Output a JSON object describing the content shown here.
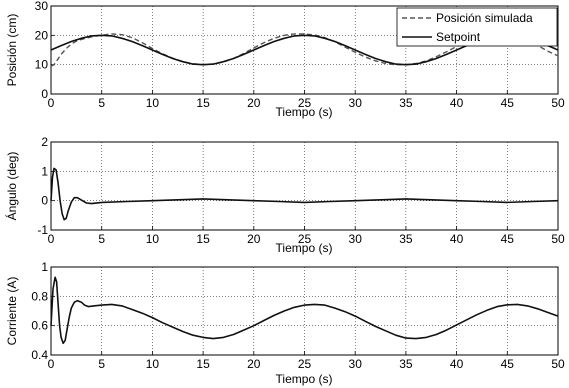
{
  "chart_data": [
    {
      "type": "line",
      "xlabel": "Tiempo (s)",
      "ylabel": "Posición (cm)",
      "xlim": [
        0,
        50
      ],
      "ylim": [
        0,
        30
      ],
      "xticks": [
        0,
        5,
        10,
        15,
        20,
        25,
        30,
        35,
        40,
        45,
        50
      ],
      "yticks": [
        0,
        10,
        20,
        30
      ],
      "grid": true,
      "legend": "top-right",
      "series": [
        {
          "name": "Posición simulada",
          "style": "dashed",
          "color": "#555555",
          "x": [
            0,
            0.3,
            0.6,
            1,
            1.5,
            2,
            2.5,
            3,
            4,
            5,
            6,
            7,
            8,
            9,
            10,
            11,
            12,
            13,
            14,
            15,
            16,
            17,
            18,
            19,
            20,
            21,
            22,
            23,
            24,
            25,
            26,
            27,
            28,
            29,
            30,
            31,
            32,
            33,
            34,
            35,
            36,
            37,
            38,
            39,
            40,
            41,
            42,
            43,
            44,
            45,
            46,
            47,
            48,
            49,
            50
          ],
          "y": [
            9.5,
            10.0,
            11.5,
            13.5,
            15.5,
            17.0,
            18.0,
            18.6,
            19.5,
            20.0,
            20.5,
            20.2,
            19.2,
            17.5,
            15.5,
            13.7,
            12.2,
            11.0,
            10.3,
            10.0,
            10.2,
            10.9,
            12.1,
            13.8,
            15.7,
            17.5,
            19.0,
            20.0,
            20.5,
            20.5,
            20.1,
            19.2,
            17.8,
            16.0,
            14.2,
            12.6,
            11.3,
            10.4,
            10.0,
            10.0,
            10.4,
            11.3,
            12.7,
            14.4,
            16.2,
            17.9,
            19.3,
            20.2,
            20.5,
            20.3,
            19.5,
            18.2,
            16.5,
            14.6,
            13.0
          ]
        },
        {
          "name": "Setpoint",
          "style": "solid",
          "color": "#111111",
          "x": [
            0,
            1,
            2,
            3,
            4,
            5,
            6,
            7,
            8,
            9,
            10,
            11,
            12,
            13,
            14,
            15,
            16,
            17,
            18,
            19,
            20,
            21,
            22,
            23,
            24,
            25,
            26,
            27,
            28,
            29,
            30,
            31,
            32,
            33,
            34,
            35,
            36,
            37,
            38,
            39,
            40,
            41,
            42,
            43,
            44,
            45,
            46,
            47,
            48,
            49,
            50
          ],
          "y": [
            15.0,
            16.5,
            17.9,
            19.0,
            19.8,
            20.0,
            19.8,
            19.0,
            17.9,
            16.5,
            15.0,
            13.5,
            12.1,
            11.0,
            10.2,
            10.0,
            10.2,
            11.0,
            12.1,
            13.5,
            15.0,
            16.5,
            17.9,
            19.0,
            19.8,
            20.0,
            19.8,
            19.0,
            17.9,
            16.5,
            15.0,
            13.5,
            12.1,
            11.0,
            10.2,
            10.0,
            10.2,
            11.0,
            12.1,
            13.5,
            15.0,
            16.5,
            17.9,
            19.0,
            19.8,
            20.0,
            19.8,
            19.0,
            17.9,
            16.5,
            15.0
          ]
        }
      ]
    },
    {
      "type": "line",
      "xlabel": "Tiempo (s)",
      "ylabel": "Ángulo (deg)",
      "xlim": [
        0,
        50
      ],
      "ylim": [
        -1,
        2
      ],
      "xticks": [
        0,
        5,
        10,
        15,
        20,
        25,
        30,
        35,
        40,
        45,
        50
      ],
      "yticks": [
        -1,
        0,
        1,
        2
      ],
      "grid": true,
      "series": [
        {
          "style": "solid",
          "color": "#111111",
          "x": [
            0,
            0.15,
            0.3,
            0.5,
            0.7,
            0.9,
            1.1,
            1.3,
            1.5,
            1.7,
            2.0,
            2.3,
            2.6,
            3.0,
            3.5,
            4.0,
            5,
            7.5,
            10,
            12.5,
            15,
            17.5,
            20,
            22.5,
            25,
            27.5,
            30,
            32.5,
            35,
            37.5,
            40,
            42.5,
            45,
            47.5,
            50
          ],
          "y": [
            0.0,
            0.8,
            1.1,
            1.05,
            0.6,
            0.0,
            -0.45,
            -0.65,
            -0.6,
            -0.35,
            -0.05,
            0.1,
            0.1,
            0.02,
            -0.08,
            -0.1,
            -0.06,
            -0.03,
            0.0,
            0.03,
            0.06,
            0.03,
            0.0,
            -0.03,
            -0.06,
            -0.03,
            0.0,
            0.03,
            0.06,
            0.03,
            0.0,
            -0.03,
            -0.06,
            -0.03,
            0.0
          ]
        }
      ]
    },
    {
      "type": "line",
      "xlabel": "Tiempo (s)",
      "ylabel": "Corriente (A)",
      "xlim": [
        0,
        50
      ],
      "ylim": [
        0.4,
        1
      ],
      "xticks": [
        0,
        5,
        10,
        15,
        20,
        25,
        30,
        35,
        40,
        45,
        50
      ],
      "yticks": [
        0.4,
        0.6,
        0.8,
        1
      ],
      "grid": true,
      "series": [
        {
          "style": "solid",
          "color": "#111111",
          "x": [
            0,
            0.2,
            0.4,
            0.55,
            0.7,
            0.85,
            1.0,
            1.2,
            1.4,
            1.6,
            1.8,
            2.0,
            2.3,
            2.6,
            3.0,
            3.3,
            3.7,
            4.2,
            5,
            6,
            7,
            8,
            9,
            10,
            11,
            12,
            13,
            14,
            15,
            16,
            17,
            18,
            19,
            20,
            21,
            22,
            23,
            24,
            25,
            26,
            27,
            28,
            29,
            30,
            31,
            32,
            33,
            34,
            35,
            36,
            37,
            38,
            39,
            40,
            41,
            42,
            43,
            44,
            45,
            46,
            47,
            48,
            49,
            50
          ],
          "y": [
            0.6,
            0.85,
            0.93,
            0.9,
            0.75,
            0.6,
            0.52,
            0.48,
            0.5,
            0.58,
            0.66,
            0.72,
            0.76,
            0.77,
            0.76,
            0.74,
            0.73,
            0.735,
            0.74,
            0.745,
            0.735,
            0.71,
            0.685,
            0.655,
            0.62,
            0.59,
            0.56,
            0.535,
            0.52,
            0.512,
            0.52,
            0.54,
            0.57,
            0.6,
            0.635,
            0.67,
            0.7,
            0.725,
            0.74,
            0.745,
            0.74,
            0.72,
            0.695,
            0.665,
            0.63,
            0.595,
            0.565,
            0.535,
            0.515,
            0.512,
            0.52,
            0.54,
            0.57,
            0.605,
            0.64,
            0.675,
            0.705,
            0.73,
            0.742,
            0.745,
            0.735,
            0.715,
            0.69,
            0.665
          ]
        }
      ]
    }
  ]
}
